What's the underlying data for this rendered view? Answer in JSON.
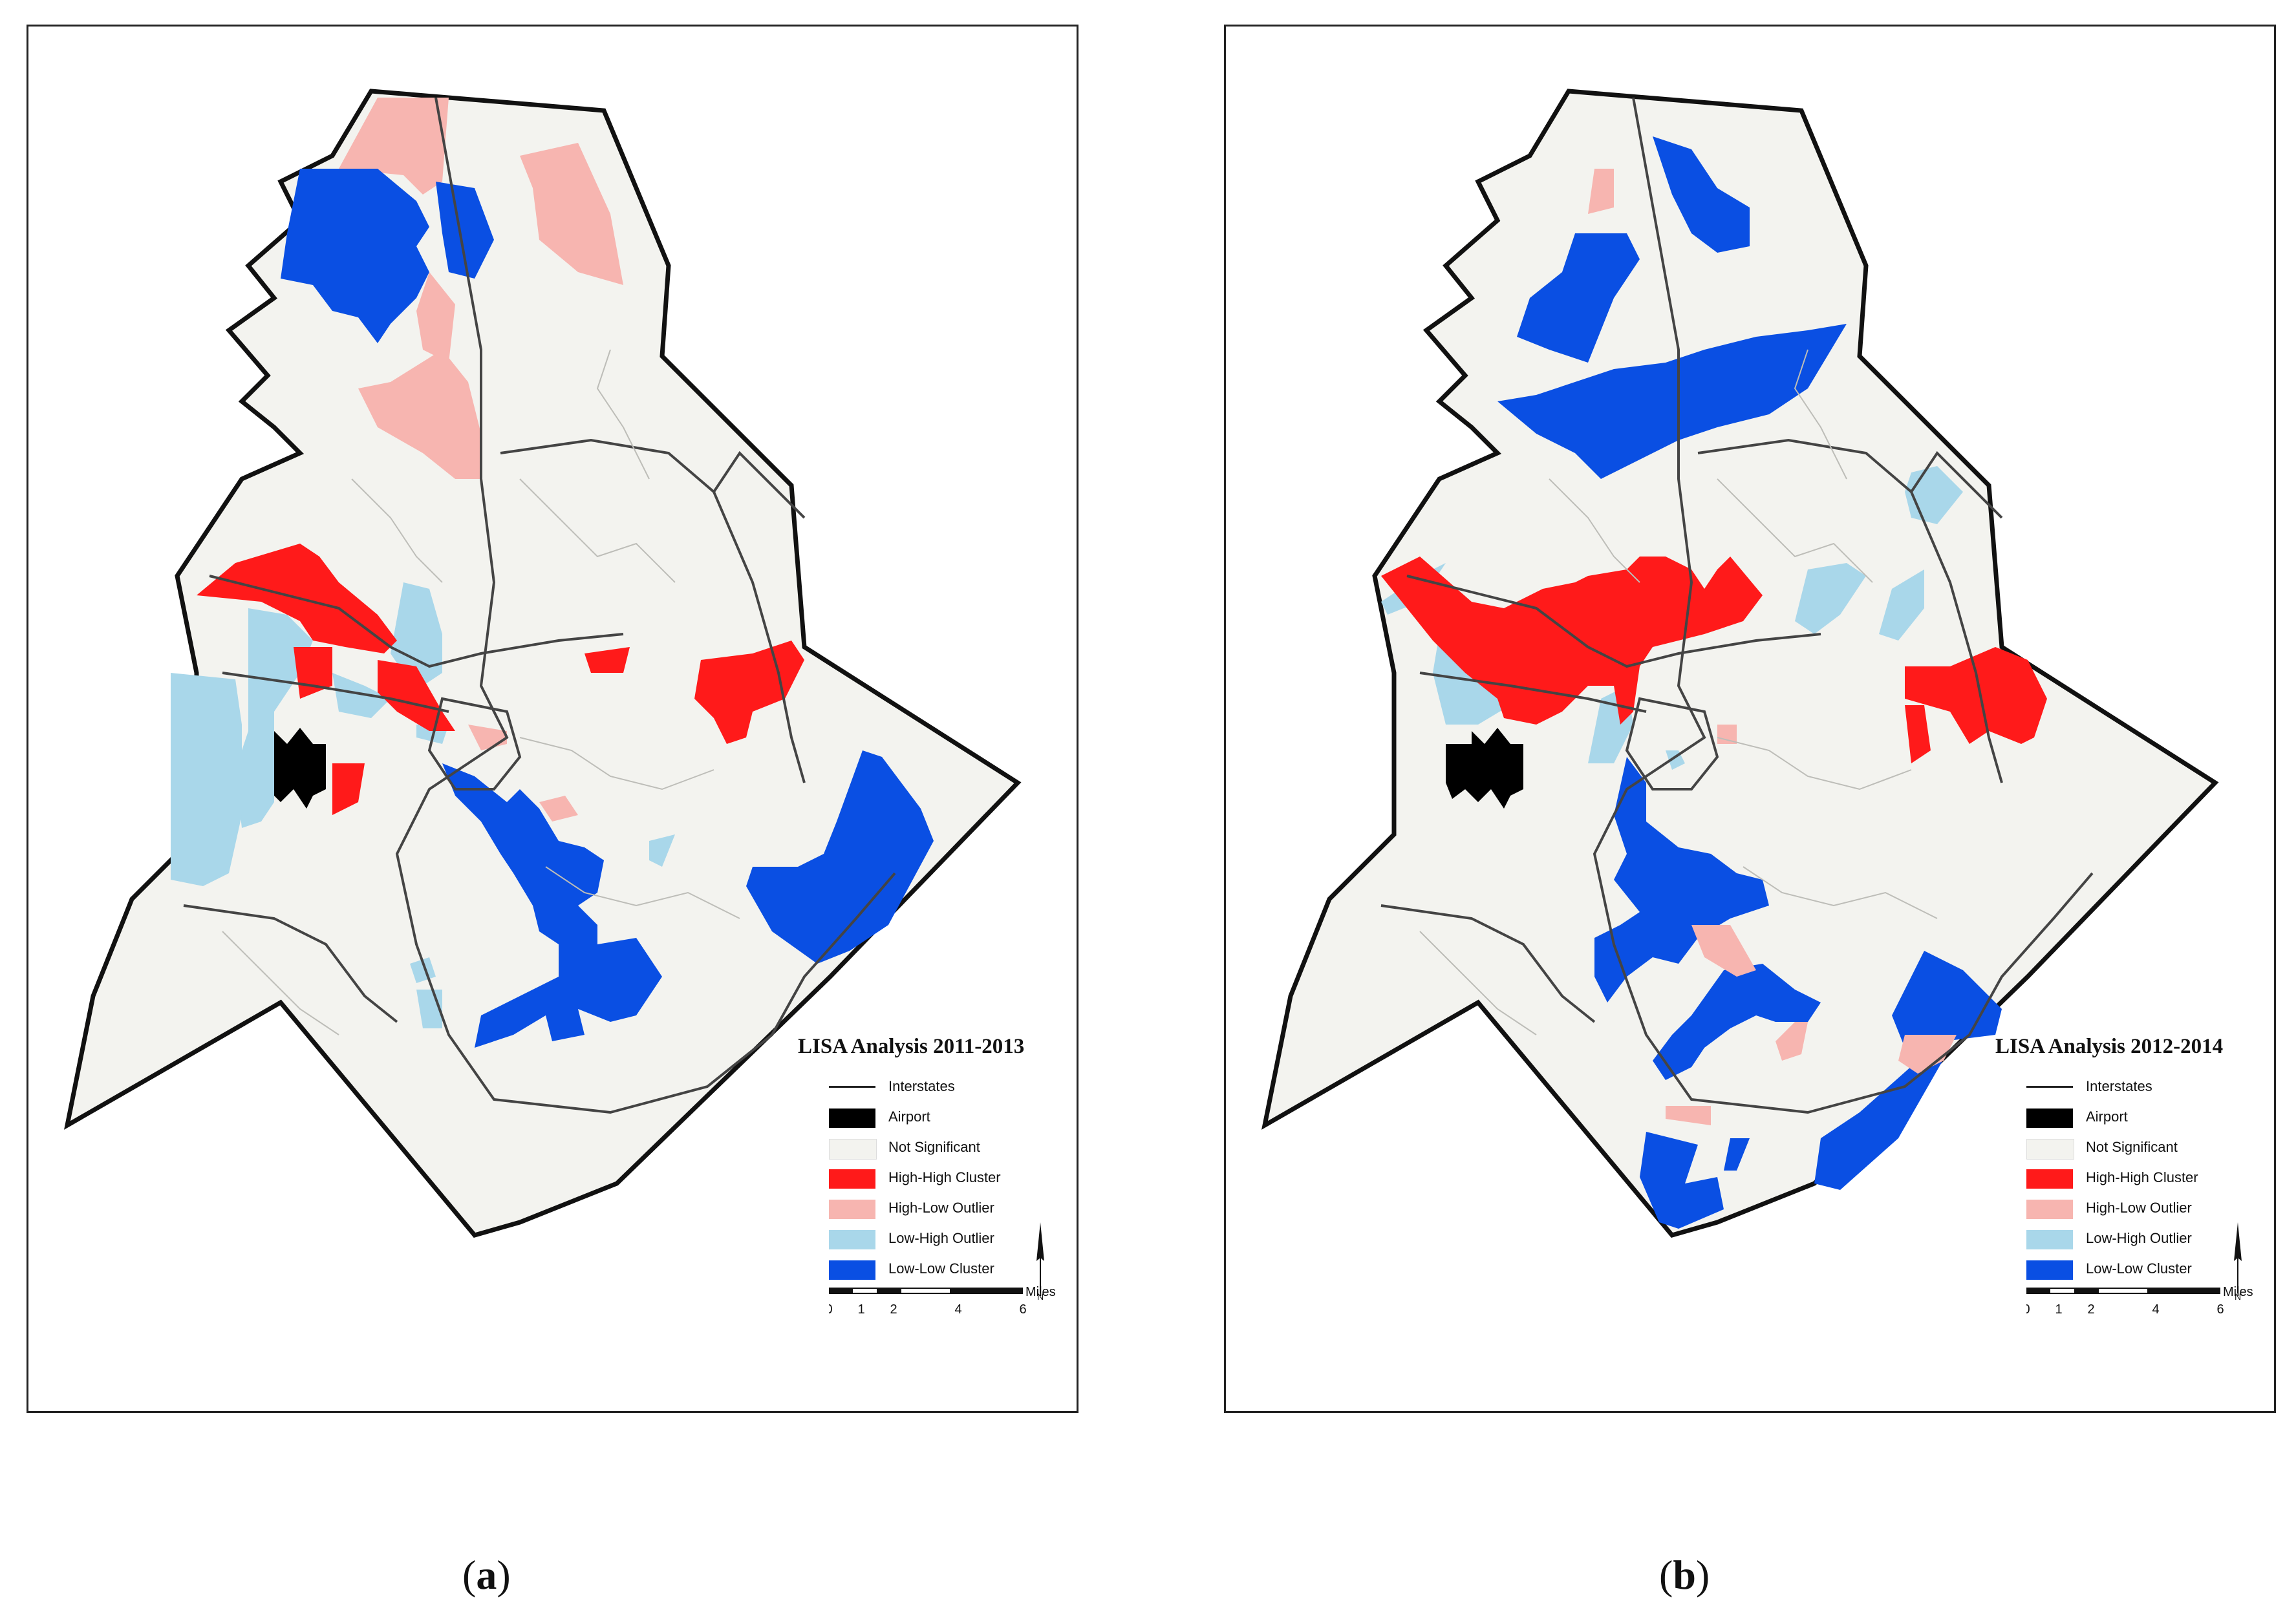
{
  "panels": [
    {
      "id": "a",
      "title": "LISA Analysis 2011-2013",
      "caption_letter": "a",
      "regions": {
        "high_high": 6,
        "high_low": 5,
        "low_high": 6,
        "low_low": 5
      }
    },
    {
      "id": "b",
      "title": "LISA Analysis 2012-2014",
      "caption_letter": "b",
      "regions": {
        "high_high": 4,
        "high_low": 6,
        "low_high": 7,
        "low_low": 9
      }
    }
  ],
  "legend": {
    "items": [
      {
        "label": "Interstates",
        "kind": "line",
        "color": "#222222"
      },
      {
        "label": "Airport",
        "kind": "fill",
        "color": "#000000"
      },
      {
        "label": "Not Significant",
        "kind": "fill",
        "color": "#f3f3ef"
      },
      {
        "label": "High-High Cluster",
        "kind": "fill",
        "color": "#ff1a1a"
      },
      {
        "label": "High-Low Outlier",
        "kind": "fill",
        "color": "#f7b5b0"
      },
      {
        "label": "Low-High Outlier",
        "kind": "fill",
        "color": "#a9d7ea"
      },
      {
        "label": "Low-Low Cluster",
        "kind": "fill",
        "color": "#0a4fe3"
      }
    ],
    "north_label": "N",
    "scale": {
      "unit": "Miles",
      "ticks": [
        "0",
        "1",
        "2",
        "4",
        "6"
      ]
    }
  },
  "captions": {
    "a": "a",
    "b": "b"
  }
}
